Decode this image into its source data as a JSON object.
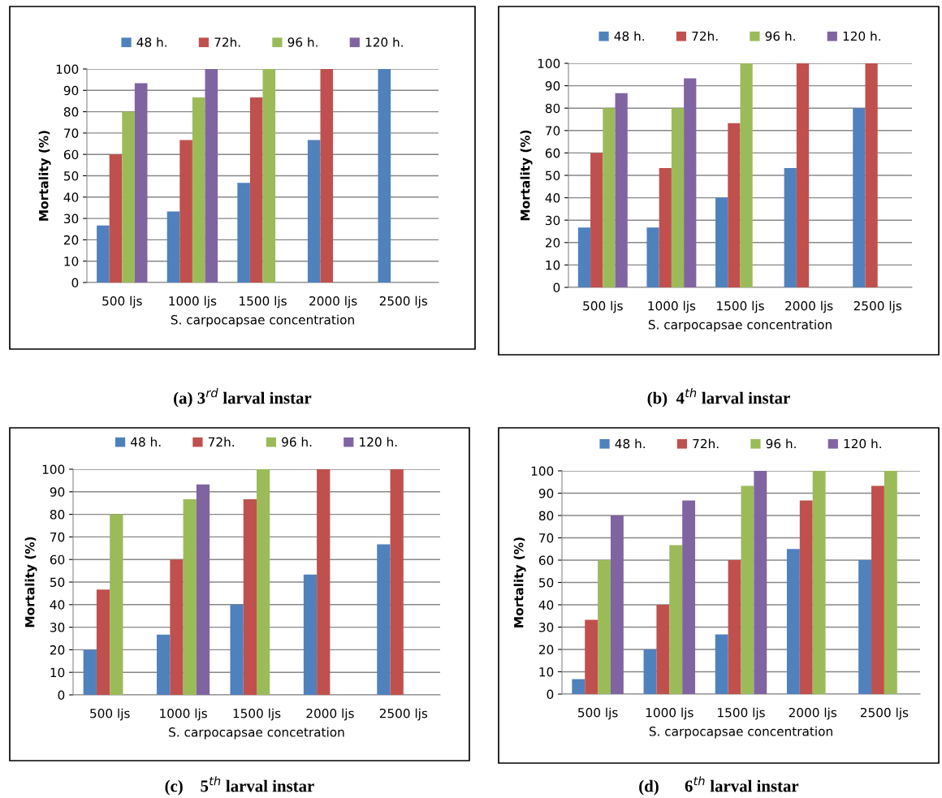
{
  "chart_data": [
    {
      "type": "bar",
      "title": "(a) 3$^{rd}$ larval instar",
      "xlabel": "S. carpocapsae concentration",
      "ylabel": "Mortality (%)",
      "categories": [
        "500 ljs",
        "1000 ljs",
        "1500 ljs",
        "2000 ljs",
        "2500 ljs"
      ],
      "series": [
        {
          "name": "48 h.",
          "color": "#4f81bd",
          "values": [
            26.7,
            33.3,
            46.7,
            66.7,
            100
          ]
        },
        {
          "name": "72h.",
          "color": "#c0504d",
          "values": [
            60,
            66.7,
            86.7,
            100,
            null
          ]
        },
        {
          "name": "96 h.",
          "color": "#9bbb59",
          "values": [
            80,
            86.7,
            100,
            null,
            null
          ]
        },
        {
          "name": "120 h.",
          "color": "#8064a2",
          "values": [
            93.3,
            100,
            null,
            null,
            null
          ]
        }
      ],
      "ylim": [
        0,
        100
      ],
      "yticks": [
        0,
        10,
        20,
        30,
        40,
        50,
        60,
        70,
        80,
        90,
        100
      ],
      "grid": "y",
      "legend": "top"
    },
    {
      "type": "bar",
      "title": "(b)  4$^{th}$ larval instar",
      "xlabel": "S. carpocapsae concentration",
      "ylabel": "Mortality (%)",
      "categories": [
        "500 ljs",
        "1000 ljs",
        "1500 ljs",
        "2000 ljs",
        "2500 ljs"
      ],
      "series": [
        {
          "name": "48 h.",
          "color": "#4f81bd",
          "values": [
            26.7,
            26.7,
            40,
            53.3,
            80
          ]
        },
        {
          "name": "72h.",
          "color": "#c0504d",
          "values": [
            60,
            53.3,
            73.3,
            100,
            100
          ]
        },
        {
          "name": "96 h.",
          "color": "#9bbb59",
          "values": [
            80,
            80,
            100,
            null,
            null
          ]
        },
        {
          "name": "120 h.",
          "color": "#8064a2",
          "values": [
            86.7,
            93.3,
            null,
            null,
            null
          ]
        }
      ],
      "ylim": [
        0,
        100
      ],
      "yticks": [
        0,
        10,
        20,
        30,
        40,
        50,
        60,
        70,
        80,
        90,
        100
      ],
      "grid": "y",
      "legend": "top"
    },
    {
      "type": "bar",
      "title": "(c)    5$^{th}$ larval instar",
      "xlabel": "S. carpocapsae concetration",
      "ylabel": "Mortality (%)",
      "categories": [
        "500 ljs",
        "1000 ljs",
        "1500 ljs",
        "2000 ljs",
        "2500 ljs"
      ],
      "series": [
        {
          "name": "48 h.",
          "color": "#4f81bd",
          "values": [
            20,
            26.7,
            40,
            53.3,
            66.7
          ]
        },
        {
          "name": "72h.",
          "color": "#c0504d",
          "values": [
            46.7,
            60,
            86.7,
            100,
            100
          ]
        },
        {
          "name": "96 h.",
          "color": "#9bbb59",
          "values": [
            80,
            86.7,
            100,
            null,
            null
          ]
        },
        {
          "name": "120 h.",
          "color": "#8064a2",
          "values": [
            null,
            93.3,
            null,
            null,
            null
          ]
        }
      ],
      "ylim": [
        0,
        100
      ],
      "yticks": [
        0,
        10,
        20,
        30,
        40,
        50,
        60,
        70,
        80,
        90,
        100
      ],
      "grid": "y",
      "legend": "top"
    },
    {
      "type": "bar",
      "title": "(d)      6$^{th}$ larval instar",
      "xlabel": "S. carpocapsae concentration",
      "ylabel": "Mortality (%)",
      "categories": [
        "500 ljs",
        "1000 ljs",
        "1500 ljs",
        "2000 ljs",
        "2500 ljs"
      ],
      "series": [
        {
          "name": "48 h.",
          "color": "#4f81bd",
          "values": [
            6.7,
            20,
            26.7,
            65,
            60
          ]
        },
        {
          "name": "72h.",
          "color": "#c0504d",
          "values": [
            33.3,
            40,
            60,
            86.7,
            93.3
          ]
        },
        {
          "name": "96 h.",
          "color": "#9bbb59",
          "values": [
            60,
            66.7,
            93.3,
            100,
            100
          ]
        },
        {
          "name": "120 h.",
          "color": "#8064a2",
          "values": [
            80,
            86.7,
            100,
            null,
            null
          ]
        }
      ],
      "ylim": [
        0,
        100
      ],
      "yticks": [
        0,
        10,
        20,
        30,
        40,
        50,
        60,
        70,
        80,
        90,
        100
      ],
      "grid": "y",
      "legend": "top"
    }
  ]
}
